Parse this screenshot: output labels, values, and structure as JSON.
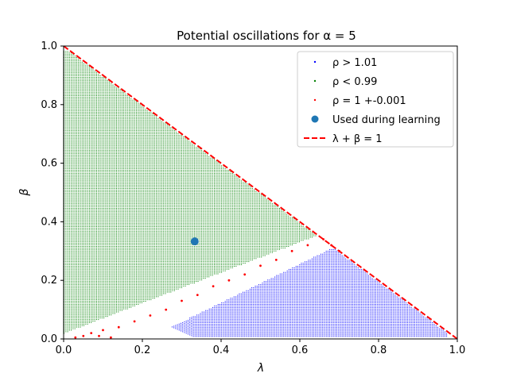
{
  "chart_data": {
    "type": "scatter",
    "title": "Potential oscillations for α = 5",
    "xlabel": "λ",
    "ylabel": "β",
    "xlim": [
      0.0,
      1.0
    ],
    "ylim": [
      0.0,
      1.0
    ],
    "xticks": [
      "0.0",
      "0.2",
      "0.4",
      "0.6",
      "0.8",
      "1.0"
    ],
    "yticks": [
      "0.0",
      "0.2",
      "0.4",
      "0.6",
      "0.8",
      "1.0"
    ],
    "grid": false,
    "legend_position": "top-right",
    "series": [
      {
        "name": "ρ > 1.01",
        "color": "#0000ff",
        "marker": "dot",
        "region": {
          "description_points": [
            [
              0.27,
              0.05
            ],
            [
              0.68,
              0.3
            ],
            [
              0.7,
              0.33
            ],
            [
              0.97,
              0.03
            ],
            [
              0.97,
              0.0
            ],
            [
              0.3,
              0.0
            ]
          ]
        }
      },
      {
        "name": "ρ < 0.99",
        "color": "#008000",
        "marker": "dot",
        "region": {
          "description_points": [
            [
              0.0,
              0.0
            ],
            [
              0.0,
              1.0
            ],
            [
              0.64,
              0.36
            ],
            [
              0.0,
              0.02
            ]
          ]
        }
      },
      {
        "name": "ρ = 1 +-0.001",
        "color": "#ff0000",
        "marker": "dot",
        "points": [
          [
            0.03,
            0.005
          ],
          [
            0.05,
            0.01
          ],
          [
            0.07,
            0.02
          ],
          [
            0.09,
            0.01
          ],
          [
            0.1,
            0.03
          ],
          [
            0.12,
            0.005
          ],
          [
            0.14,
            0.04
          ],
          [
            0.18,
            0.06
          ],
          [
            0.22,
            0.08
          ],
          [
            0.26,
            0.1
          ],
          [
            0.3,
            0.13
          ],
          [
            0.34,
            0.15
          ],
          [
            0.38,
            0.18
          ],
          [
            0.42,
            0.2
          ],
          [
            0.46,
            0.22
          ],
          [
            0.5,
            0.25
          ],
          [
            0.54,
            0.27
          ],
          [
            0.58,
            0.3
          ],
          [
            0.62,
            0.32
          ],
          [
            0.66,
            0.34
          ],
          [
            0.68,
            0.32
          ],
          [
            0.7,
            0.3
          ]
        ]
      },
      {
        "name": "Used during learning",
        "color": "#1f77b4",
        "marker": "circle",
        "points": [
          [
            0.333,
            0.333
          ]
        ]
      },
      {
        "name": "λ + β = 1",
        "color": "#ff0000",
        "style": "dashed-line",
        "points": [
          [
            0.0,
            1.0
          ],
          [
            1.0,
            0.0
          ]
        ]
      }
    ]
  }
}
